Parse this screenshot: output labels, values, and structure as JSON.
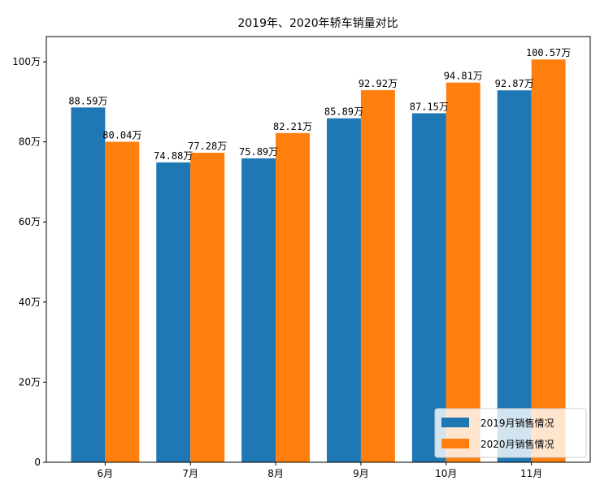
{
  "chart_data": {
    "type": "bar",
    "title": "2019年、2020年轿车销量对比",
    "categories": [
      "6月",
      "7月",
      "8月",
      "9月",
      "10月",
      "11月"
    ],
    "series": [
      {
        "name": "2019月销售情况",
        "color": "#1f77b4",
        "values": [
          88.59,
          74.88,
          75.89,
          85.89,
          87.15,
          92.87
        ]
      },
      {
        "name": "2020月销售情况",
        "color": "#ff7f0e",
        "values": [
          80.04,
          77.28,
          82.21,
          92.92,
          94.81,
          100.57
        ]
      }
    ],
    "value_suffix": "万",
    "yticks": [
      0,
      20,
      40,
      60,
      80,
      100
    ],
    "ytick_labels": [
      "0",
      "20万",
      "40万",
      "60万",
      "80万",
      "100万"
    ],
    "ylim": [
      0,
      106.3
    ],
    "grid": false,
    "legend_position": "lower-right"
  }
}
